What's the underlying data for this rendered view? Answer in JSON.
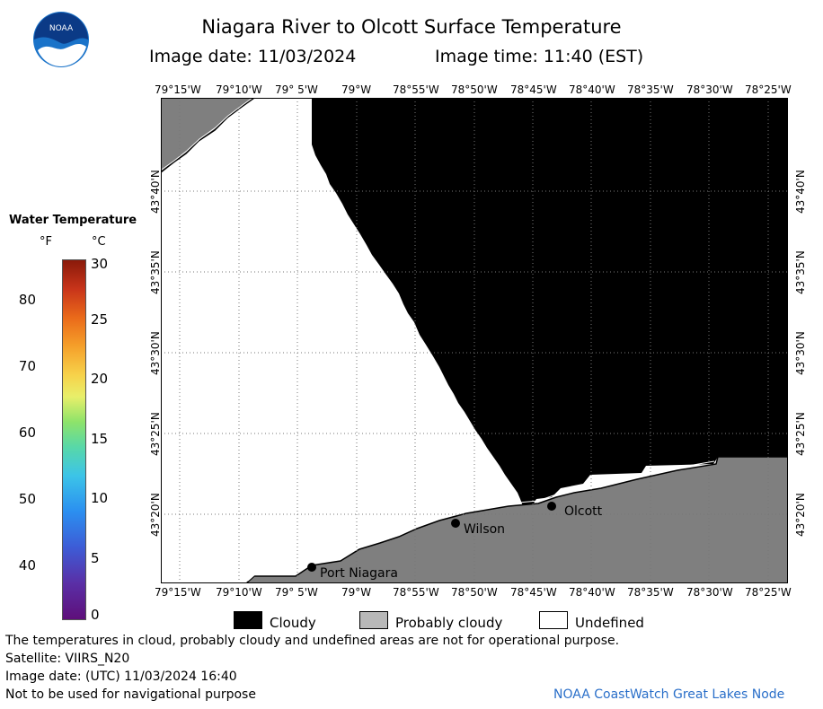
{
  "header": {
    "title": "Niagara River to Olcott Surface Temperature",
    "image_date": "Image date: 11/03/2024",
    "image_time": "Image time: 11:40 (EST)",
    "logo_text": "NOAA"
  },
  "map": {
    "lon_labels": [
      "79°15'W",
      "79°10'W",
      "79° 5'W",
      "79°W",
      "78°55'W",
      "78°50'W",
      "78°45'W",
      "78°40'W",
      "78°35'W",
      "78°30'W",
      "78°25'W"
    ],
    "lat_labels": [
      "43°40'N",
      "43°35'N",
      "43°30'N",
      "43°25'N",
      "43°20'N"
    ],
    "places": [
      {
        "name": "Olcott"
      },
      {
        "name": "Wilson"
      },
      {
        "name": "Port Niagara"
      }
    ],
    "colors": {
      "cloudy": "#000000",
      "probably_cloudy": "#7f7f7f",
      "undefined": "#ffffff",
      "grid": "#555555"
    }
  },
  "scale": {
    "title": "Water Temperature",
    "unit_f": "°F",
    "unit_c": "°C",
    "f_ticks": [
      "80",
      "70",
      "60",
      "50",
      "40"
    ],
    "c_ticks": [
      "30",
      "25",
      "20",
      "15",
      "10",
      "5",
      "0"
    ]
  },
  "legend": {
    "cloudy": "Cloudy",
    "probably_cloudy": "Probably cloudy",
    "undefined": "Undefined"
  },
  "footer": {
    "note": "The temperatures in cloud, probably cloudy and undefined areas are not for operational purpose.",
    "satellite": "Satellite: VIIRS_N20",
    "utc_date": "Image date: (UTC) 11/03/2024  16:40",
    "nav": "Not to be used for navigational purpose",
    "credit": "NOAA CoastWatch Great Lakes Node"
  }
}
